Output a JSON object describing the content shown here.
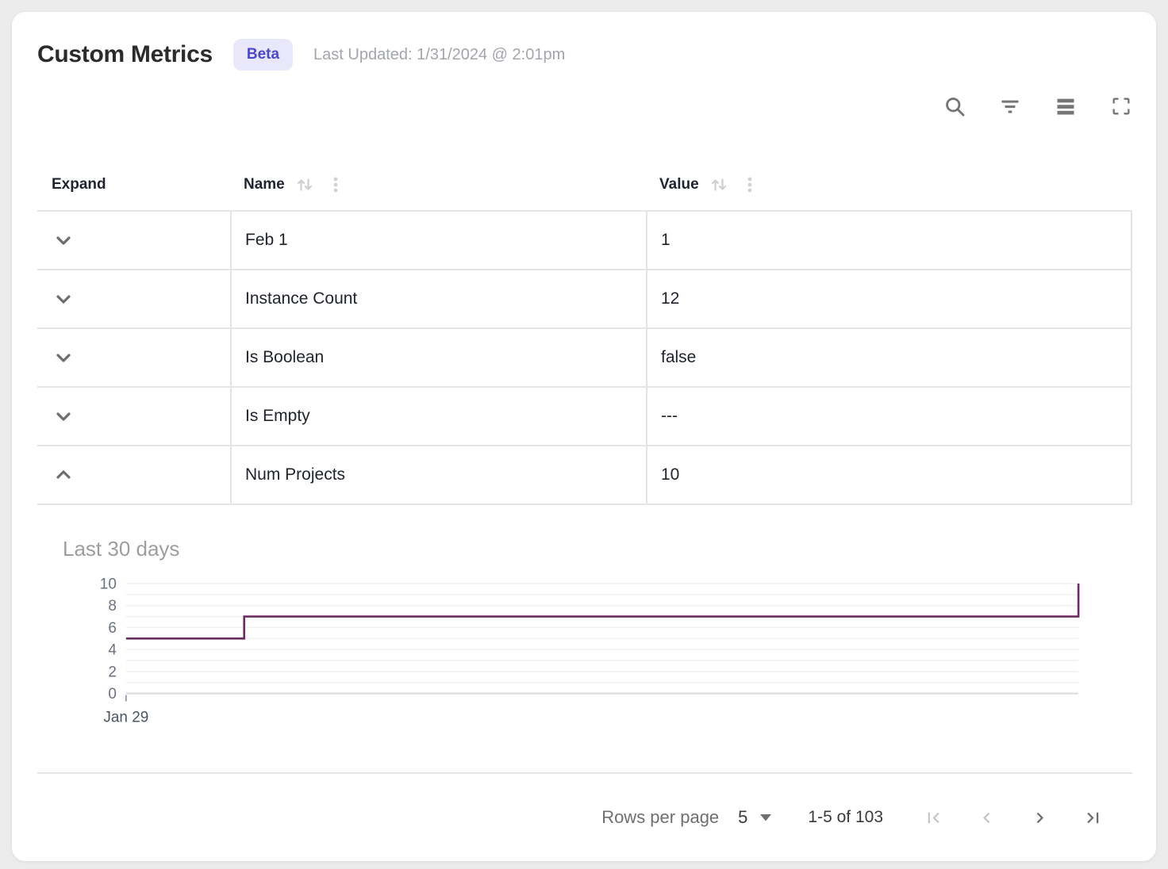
{
  "header": {
    "title": "Custom Metrics",
    "badge": "Beta",
    "last_updated": "Last Updated: 1/31/2024 @ 2:01pm"
  },
  "toolbar": {
    "icons": [
      "search",
      "filter",
      "density",
      "fullscreen"
    ]
  },
  "table": {
    "columns": [
      {
        "label": "Expand",
        "sortable": false
      },
      {
        "label": "Name",
        "sortable": true
      },
      {
        "label": "Value",
        "sortable": true
      }
    ],
    "rows": [
      {
        "name": "Feb 1",
        "value": "1",
        "expanded": false
      },
      {
        "name": "Instance Count",
        "value": "12",
        "expanded": false
      },
      {
        "name": "Is Boolean",
        "value": "false",
        "expanded": false
      },
      {
        "name": "Is Empty",
        "value": "---",
        "expanded": false
      },
      {
        "name": "Num Projects",
        "value": "10",
        "expanded": true
      }
    ]
  },
  "detail_panel": {
    "title": "Last 30 days"
  },
  "chart_data": {
    "type": "line",
    "subtype": "step",
    "title": "Last 30 days",
    "series": [
      {
        "name": "Num Projects",
        "color": "#6B2D61",
        "points": [
          {
            "x": 0.0,
            "y": 5
          },
          {
            "x": 0.124,
            "y": 5
          },
          {
            "x": 0.124,
            "y": 7
          },
          {
            "x": 1.0,
            "y": 7
          },
          {
            "x": 1.0,
            "y": 10
          }
        ]
      }
    ],
    "ylim": [
      0,
      10
    ],
    "grid_step": 1,
    "y_ticks": [
      0,
      2,
      4,
      6,
      8,
      10
    ],
    "x_tick_labels": [
      "Jan 29"
    ],
    "legend": false,
    "grid": true
  },
  "footer": {
    "rows_per_page_label": "Rows per page",
    "rows_per_page_value": "5",
    "range_label": "1-5 of 103",
    "pagination": {
      "first_enabled": false,
      "prev_enabled": false,
      "next_enabled": true,
      "last_enabled": true
    }
  },
  "colors": {
    "accent_badge_bg": "#e9e8fb",
    "accent_badge_text": "#4b48cf",
    "chart_line": "#6B2D61",
    "grid_border": "#e3e3e3",
    "icon_gray": "#757575"
  }
}
